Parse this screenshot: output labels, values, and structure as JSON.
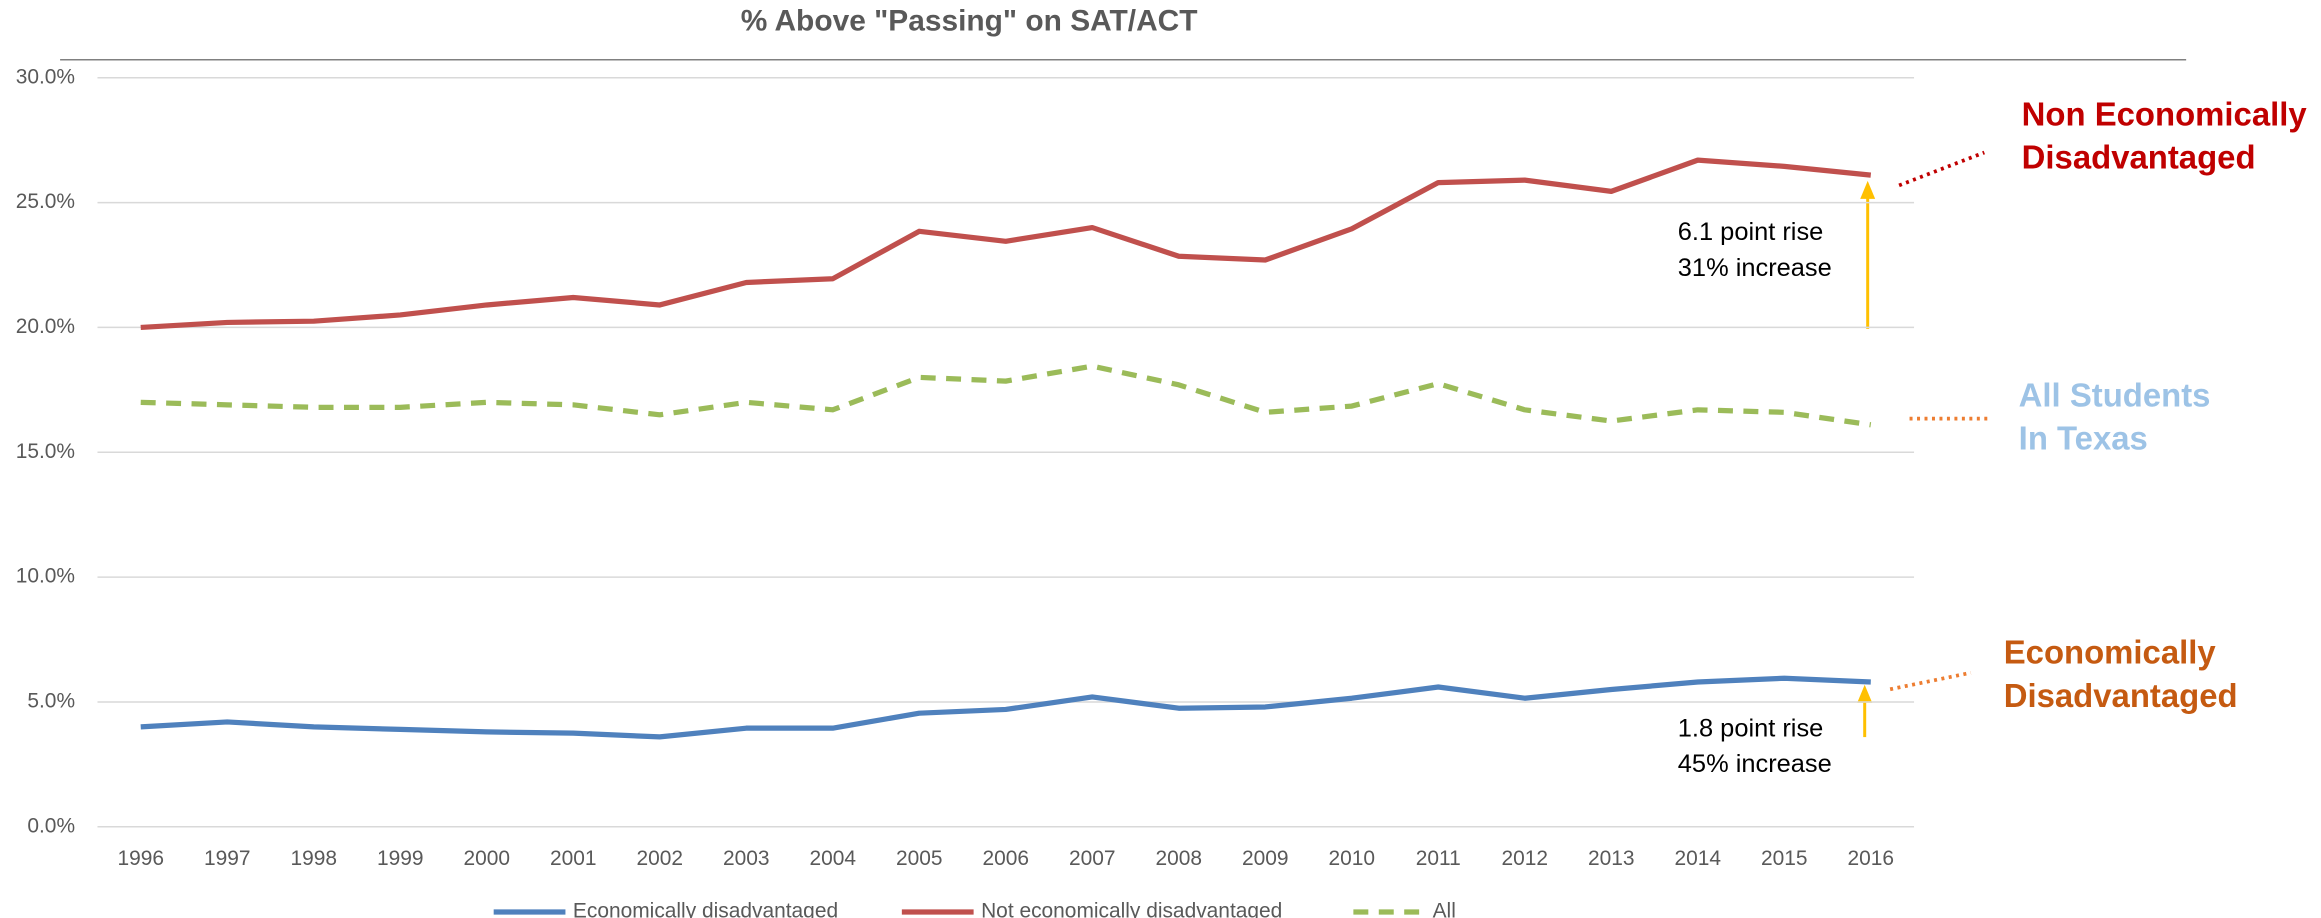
{
  "chart_data": {
    "type": "line",
    "title": "% Above \"Passing\" on SAT/ACT",
    "categories": [
      "1996",
      "1997",
      "1998",
      "1999",
      "2000",
      "2001",
      "2002",
      "2003",
      "2004",
      "2005",
      "2006",
      "2007",
      "2008",
      "2009",
      "2010",
      "2011",
      "2012",
      "2013",
      "2014",
      "2015",
      "2016"
    ],
    "series": [
      {
        "name": "Economically disadvantaged",
        "color": "#4f81bd",
        "dashed": false,
        "values": [
          4.0,
          4.2,
          4.0,
          3.9,
          3.8,
          3.75,
          3.6,
          3.95,
          3.95,
          4.55,
          4.7,
          5.2,
          4.75,
          4.8,
          5.15,
          5.6,
          5.15,
          5.5,
          5.8,
          5.95,
          5.8
        ]
      },
      {
        "name": "Not economically disadvantaged",
        "color": "#c0504d",
        "dashed": false,
        "values": [
          20.0,
          20.2,
          20.25,
          20.5,
          20.9,
          21.2,
          20.9,
          21.8,
          21.95,
          23.85,
          23.45,
          24.0,
          22.85,
          22.7,
          23.95,
          25.8,
          25.9,
          25.45,
          26.7,
          26.45,
          26.1
        ]
      },
      {
        "name": "All",
        "color": "#9bbb59",
        "dashed": true,
        "values": [
          17.0,
          16.9,
          16.8,
          16.8,
          17.0,
          16.9,
          16.5,
          17.0,
          16.7,
          18.0,
          17.85,
          18.45,
          17.7,
          16.6,
          16.85,
          17.75,
          16.7,
          16.25,
          16.7,
          16.6,
          16.1
        ]
      }
    ],
    "ylim": [
      0,
      30
    ],
    "yticks": [
      {
        "value": 0,
        "label": "0.0%"
      },
      {
        "value": 5,
        "label": "5.0%"
      },
      {
        "value": 10,
        "label": "10.0%"
      },
      {
        "value": 15,
        "label": "15.0%"
      },
      {
        "value": 20,
        "label": "20.0%"
      },
      {
        "value": 25,
        "label": "25.0%"
      },
      {
        "value": 30,
        "label": "30.0%"
      }
    ],
    "grid": true,
    "legend": "bottom",
    "annotations": [
      {
        "lines": [
          "6.1 point rise",
          "31% increase"
        ]
      },
      {
        "lines": [
          "1.8 point rise",
          "45% increase"
        ]
      }
    ],
    "side_labels": [
      {
        "lines": [
          "Non Economically",
          "Disadvantaged"
        ],
        "color": "#c00000"
      },
      {
        "lines": [
          "All Students",
          "In Texas"
        ],
        "color": "#9dc3e6"
      },
      {
        "lines": [
          "Economically",
          "Disadvantaged"
        ],
        "color": "#c55a11"
      }
    ]
  }
}
